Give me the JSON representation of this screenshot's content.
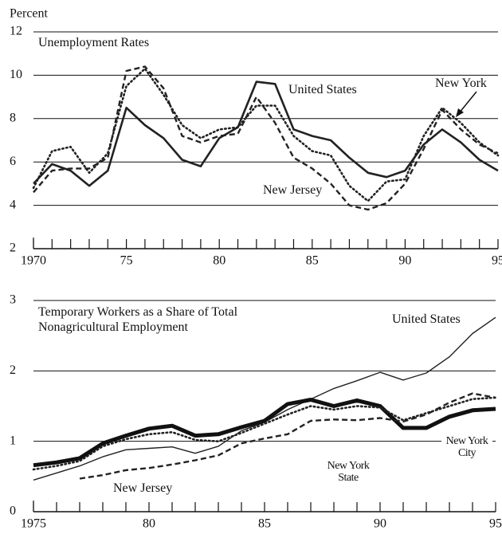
{
  "chart_data": [
    {
      "type": "line",
      "title": "Unemployment Rates",
      "ylabel": "Percent",
      "x": [
        1970,
        1971,
        1972,
        1973,
        1974,
        1975,
        1976,
        1977,
        1978,
        1979,
        1980,
        1981,
        1982,
        1983,
        1984,
        1985,
        1986,
        1987,
        1988,
        1989,
        1990,
        1991,
        1992,
        1993,
        1994,
        1995
      ],
      "series": [
        {
          "name": "United States",
          "color": "#222222",
          "style": "solid",
          "values": [
            5.0,
            5.9,
            5.6,
            4.9,
            5.6,
            8.5,
            7.7,
            7.1,
            6.1,
            5.8,
            7.1,
            7.6,
            9.7,
            9.6,
            7.5,
            7.2,
            7.0,
            6.2,
            5.5,
            5.3,
            5.6,
            6.8,
            7.5,
            6.9,
            6.1,
            5.6
          ]
        },
        {
          "name": "New York",
          "color": "#222222",
          "style": "dotted",
          "values": [
            4.8,
            6.5,
            6.7,
            5.5,
            6.4,
            9.5,
            10.3,
            9.1,
            7.7,
            7.1,
            7.5,
            7.6,
            8.6,
            8.6,
            7.2,
            6.5,
            6.3,
            4.9,
            4.2,
            5.1,
            5.2,
            7.2,
            8.5,
            7.8,
            6.9,
            6.3
          ]
        },
        {
          "name": "New Jersey",
          "color": "#222222",
          "style": "dashed",
          "values": [
            4.6,
            5.6,
            5.7,
            5.7,
            6.2,
            10.2,
            10.4,
            9.4,
            7.2,
            6.9,
            7.2,
            7.3,
            9.0,
            7.8,
            6.2,
            5.7,
            5.0,
            4.0,
            3.8,
            4.1,
            5.0,
            6.6,
            8.4,
            7.5,
            6.8,
            6.4
          ]
        }
      ],
      "xlim": [
        1970,
        1995
      ],
      "xticks": [
        1970,
        {
          "value": 1975,
          "label": "75"
        },
        {
          "value": 1980,
          "label": "80"
        },
        {
          "value": 1985,
          "label": "85"
        },
        {
          "value": 1990,
          "label": "90"
        },
        {
          "value": 1995,
          "label": "95"
        }
      ],
      "ylim": [
        2,
        12
      ],
      "yticks": [
        2,
        4,
        6,
        8,
        10,
        12
      ],
      "grid": true
    },
    {
      "type": "line",
      "title": "Temporary Workers as a Share of Total Nonagricultural Employment",
      "x": [
        1975,
        1976,
        1977,
        1978,
        1979,
        1980,
        1981,
        1982,
        1983,
        1984,
        1985,
        1986,
        1987,
        1988,
        1989,
        1990,
        1991,
        1992,
        1993,
        1994,
        1995
      ],
      "series": [
        {
          "name": "United States",
          "color": "#222222",
          "style": "thin",
          "values": [
            0.45,
            0.55,
            0.65,
            0.78,
            0.88,
            0.9,
            0.92,
            0.83,
            0.93,
            1.15,
            1.27,
            1.45,
            1.6,
            1.75,
            1.86,
            1.98,
            1.87,
            1.97,
            2.2,
            2.53,
            2.76
          ]
        },
        {
          "name": "New York City",
          "color": "#111111",
          "style": "thick",
          "values": [
            0.66,
            0.7,
            0.76,
            0.97,
            1.08,
            1.18,
            1.22,
            1.08,
            1.1,
            1.2,
            1.29,
            1.53,
            1.59,
            1.5,
            1.58,
            1.5,
            1.19,
            1.19,
            1.35,
            1.44,
            1.46
          ]
        },
        {
          "name": "New York State",
          "color": "#222222",
          "style": "dotted",
          "values": [
            0.6,
            0.65,
            0.72,
            0.93,
            1.03,
            1.1,
            1.13,
            1.02,
            1.0,
            1.12,
            1.25,
            1.38,
            1.5,
            1.45,
            1.5,
            1.48,
            1.3,
            1.4,
            1.5,
            1.6,
            1.62
          ]
        },
        {
          "name": "New Jersey",
          "color": "#222222",
          "style": "dashed",
          "values": [
            null,
            null,
            0.47,
            0.52,
            0.59,
            0.62,
            0.67,
            0.73,
            0.8,
            0.97,
            1.04,
            1.1,
            1.29,
            1.31,
            1.3,
            1.33,
            1.28,
            1.38,
            1.55,
            1.68,
            1.62
          ]
        }
      ],
      "xlim": [
        1975,
        1995
      ],
      "xticks": [
        1975,
        {
          "value": 1980,
          "label": "80"
        },
        {
          "value": 1985,
          "label": "85"
        },
        {
          "value": 1990,
          "label": "90"
        },
        {
          "value": 1995,
          "label": "95"
        }
      ],
      "ylim": [
        0,
        3
      ],
      "yticks": [
        0,
        1,
        2,
        3
      ],
      "grid": true
    }
  ]
}
